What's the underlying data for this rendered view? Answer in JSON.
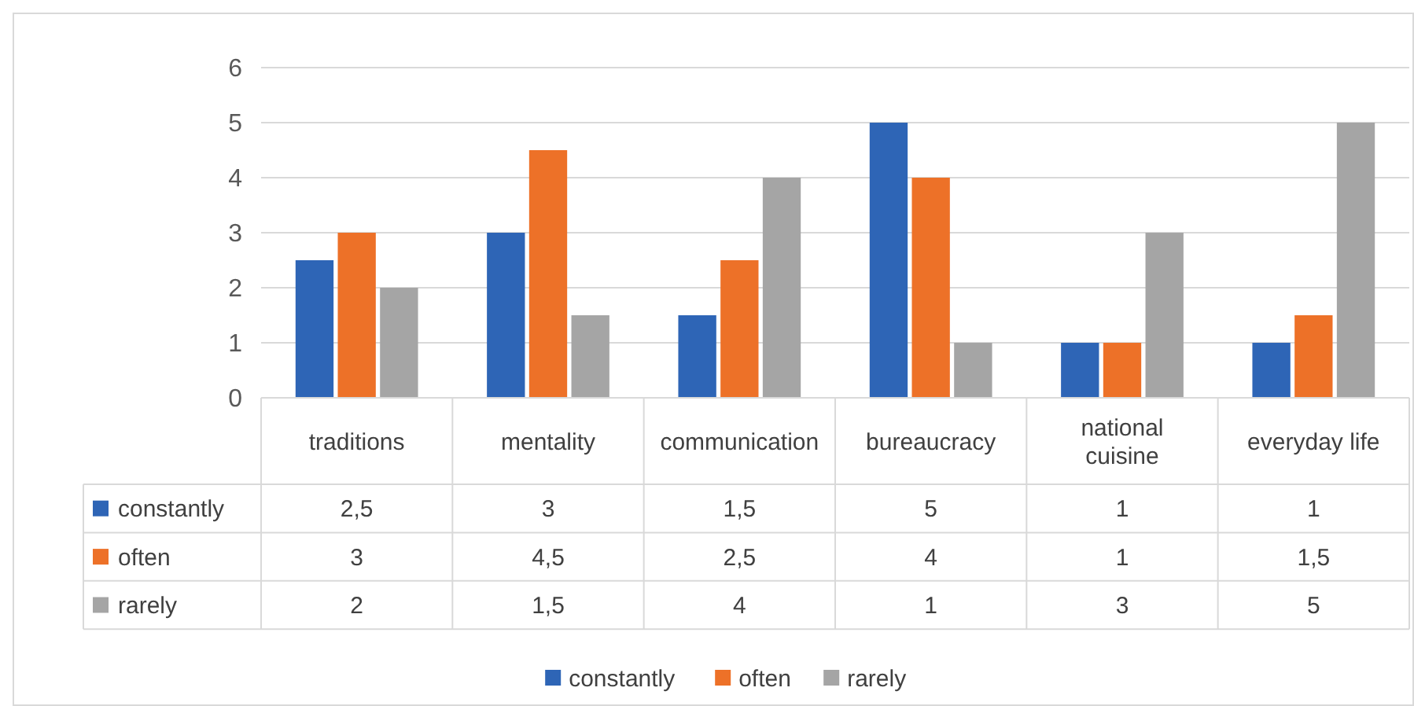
{
  "chart_data": {
    "type": "bar",
    "categories": [
      "traditions",
      "mentality",
      "communication",
      "bureaucracy",
      "national cuisine",
      "everyday life"
    ],
    "series": [
      {
        "name": "constantly",
        "color": "#2e65b6",
        "values": [
          2.5,
          3,
          1.5,
          5,
          1,
          1
        ],
        "value_labels": [
          "2,5",
          "3",
          "1,5",
          "5",
          "1",
          "1"
        ]
      },
      {
        "name": "often",
        "color": "#ed7128",
        "values": [
          3,
          4.5,
          2.5,
          4,
          1,
          1.5
        ],
        "value_labels": [
          "3",
          "4,5",
          "2,5",
          "4",
          "1",
          "1,5"
        ]
      },
      {
        "name": "rarely",
        "color": "#a5a5a5",
        "values": [
          2,
          1.5,
          4,
          1,
          3,
          5
        ],
        "value_labels": [
          "2",
          "1,5",
          "4",
          "1",
          "3",
          "5"
        ]
      }
    ],
    "ylim": [
      0,
      6
    ],
    "yticks": [
      0,
      1,
      2,
      3,
      4,
      5,
      6
    ],
    "grid": "y",
    "legend": "bottom"
  }
}
